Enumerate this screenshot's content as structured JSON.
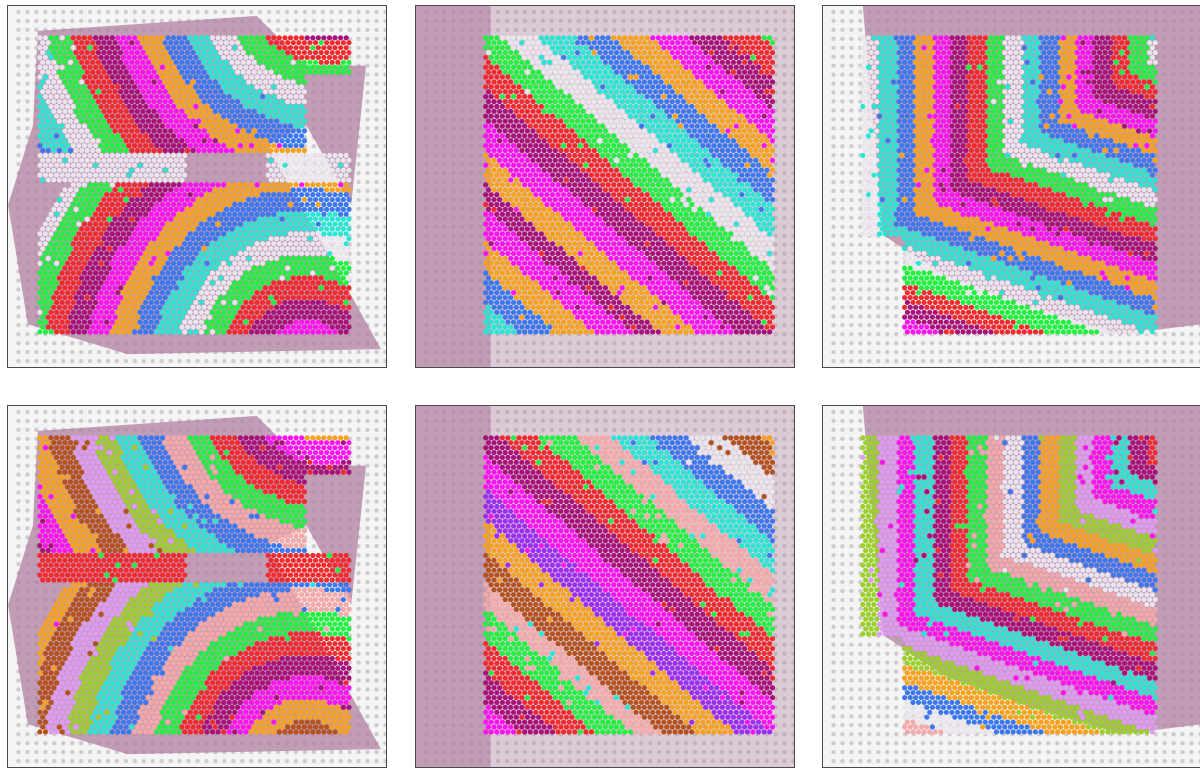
{
  "panels": [
    {
      "id": "p0",
      "variant": "a",
      "clusters": [
        "#f6a21c",
        "#ff12f2",
        "#a8107a",
        "#f22a2e",
        "#1ef23e",
        "#eae4ec",
        "#27e6d4",
        "#3b78f0"
      ]
    },
    {
      "id": "p1",
      "variant": "b",
      "clusters": [
        "#f6a21c",
        "#ff12f2",
        "#a8107a",
        "#f22a2e",
        "#1ef23e",
        "#eae4ec",
        "#27e6d4",
        "#3b78f0"
      ]
    },
    {
      "id": "p2",
      "variant": "c",
      "clusters": [
        "#f6a21c",
        "#ff12f2",
        "#a8107a",
        "#f22a2e",
        "#1ef23e",
        "#eae4ec",
        "#27e6d4",
        "#3b78f0"
      ]
    },
    {
      "id": "p3",
      "variant": "a",
      "clusters": [
        "#dd9bf2",
        "#b4511c",
        "#f6a21c",
        "#ff12f2",
        "#a8107a",
        "#f22a2e",
        "#1ef23e",
        "#f4a9a8",
        "#3b78f0",
        "#27e6d4",
        "#9bd02a"
      ]
    },
    {
      "id": "p4",
      "variant": "b",
      "clusters": [
        "#b4511c",
        "#f6a21c",
        "#9b2ef2",
        "#ff12f2",
        "#a8107a",
        "#f22a2e",
        "#1ef23e",
        "#f4a9a8",
        "#27e6d4",
        "#3b78f0",
        "#eae4ec"
      ]
    },
    {
      "id": "p5",
      "variant": "c",
      "clusters": [
        "#dd9bf2",
        "#ff12f2",
        "#27e6d4",
        "#a8107a",
        "#f22a2e",
        "#1ef23e",
        "#f4a9a8",
        "#eae4ec",
        "#3b78f0",
        "#f6a21c",
        "#9bd02a"
      ]
    }
  ],
  "tissue_color": "#b07fa0",
  "fiducial_color": "#b3aab3",
  "background_color": "#f4f4f4"
}
